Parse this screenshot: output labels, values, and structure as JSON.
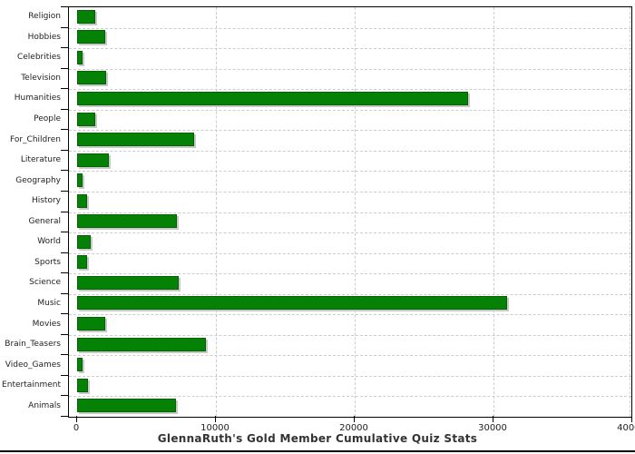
{
  "chart_data": {
    "type": "bar",
    "orientation": "horizontal",
    "title": "GlennaRuth's Gold Member Cumulative Quiz Stats",
    "categories": [
      "Religion",
      "Hobbies",
      "Celebrities",
      "Television",
      "Humanities",
      "People",
      "For_Children",
      "Literature",
      "Geography",
      "History",
      "General",
      "World",
      "Sports",
      "Science",
      "Music",
      "Movies",
      "Brain_Teasers",
      "Video_Games",
      "Entertainment",
      "Animals"
    ],
    "values": [
      1300,
      2000,
      400,
      2100,
      28200,
      1300,
      8400,
      2300,
      400,
      700,
      7200,
      1000,
      700,
      7300,
      31000,
      2000,
      9300,
      400,
      800,
      7100
    ],
    "xlabel": "",
    "ylabel": "",
    "xlim": [
      0,
      40000
    ],
    "x_ticks": [
      0,
      10000,
      20000,
      30000,
      40000
    ],
    "x_tick_labels": [
      "0",
      "10000",
      "20000",
      "30000",
      "40000"
    ],
    "grid": "dashed-both-axes",
    "legend": "none",
    "colors": {
      "bar_fill": "#058205",
      "bar_border": "#046404",
      "bar_shadow": "#c9c9c9",
      "gridline": "#cccccc",
      "axis": "#000000",
      "title": "#333333",
      "tick_label": "#222222",
      "background": "#ffffff",
      "bottom_rule": "#000000"
    }
  }
}
